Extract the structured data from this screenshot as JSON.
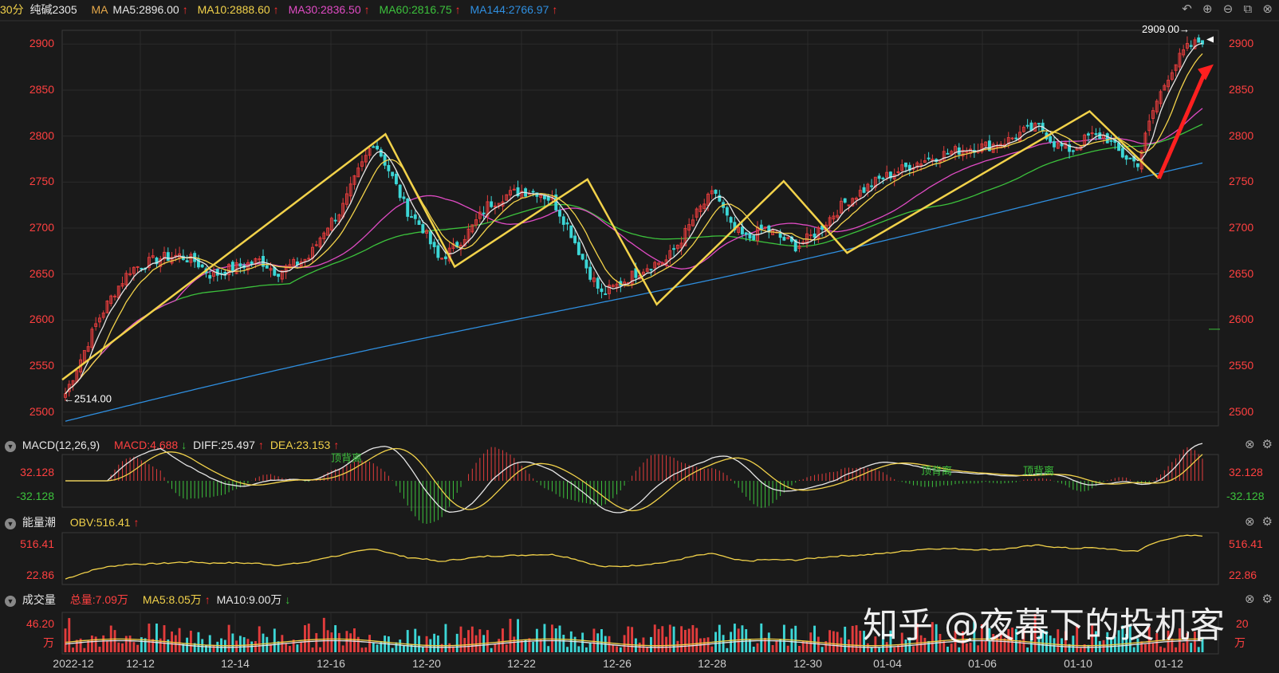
{
  "header": {
    "period": "30分",
    "symbol": "纯碱2305",
    "ma_label": "MA",
    "ma": [
      {
        "label": "MA5:2896.00",
        "color": "#e6e6e6"
      },
      {
        "label": "MA10:2888.60",
        "color": "#f2d24a"
      },
      {
        "label": "MA30:2836.50",
        "color": "#e04bc4"
      },
      {
        "label": "MA60:2816.75",
        "color": "#3cc23c"
      },
      {
        "label": "MA144:2766.97",
        "color": "#2f8fe0"
      }
    ],
    "up_arrow": "↑",
    "down_arrow": "↓"
  },
  "icons": [
    "undo-icon",
    "zoom-in-icon",
    "zoom-out-icon",
    "restore-icon",
    "close-icon"
  ],
  "price_chart": {
    "type": "candlestick",
    "ylim": [
      2485,
      2915
    ],
    "yticks": [
      2500,
      2550,
      2600,
      2650,
      2700,
      2750,
      2800,
      2850,
      2900
    ],
    "high_label": "2909.00→",
    "low_label": "←2514.00",
    "zigzag_points": [
      [
        0,
        2535
      ],
      [
        56,
        2802
      ],
      [
        68,
        2658
      ],
      [
        91,
        2753
      ],
      [
        103,
        2617
      ],
      [
        125,
        2751
      ],
      [
        136,
        2673
      ],
      [
        178,
        2827
      ],
      [
        190,
        2754
      ]
    ],
    "colors": {
      "up": "#e23c3c",
      "down": "#3cd6d6",
      "zigzag": "#f2d24a",
      "arrow": "#ff2020"
    }
  },
  "macd": {
    "title": "MACD(12,26,9)",
    "macd_label": "MACD:4.688",
    "diff_label": "DIFF:25.497",
    "dea_label": "DEA:23.153",
    "top": "32.128",
    "bottom": "-32.128",
    "annotations": [
      "顶背离",
      "顶背离",
      "顶背离"
    ]
  },
  "obv": {
    "title": "能量潮",
    "label": "OBV:516.41",
    "top": "516.41",
    "bottom": "22.86"
  },
  "volume": {
    "title": "成交量",
    "total_label": "总量:7.09万",
    "ma5_label": "MA5:8.05万",
    "ma10_label": "MA10:9.00万",
    "top": "46.20",
    "unit": "万",
    "right_top": "20"
  },
  "xaxis": [
    "2022-12",
    "12-12",
    "12-14",
    "12-16",
    "12-20",
    "12-22",
    "12-26",
    "12-28",
    "12-30",
    "01-04",
    "01-06",
    "01-10",
    "01-12"
  ],
  "watermark": "知乎 @夜幕下的投机客",
  "chart_data": {
    "type": "candlestick",
    "x_labels": [
      "2022-12",
      "12-12",
      "12-14",
      "12-16",
      "12-20",
      "12-22",
      "12-26",
      "12-28",
      "12-30",
      "01-04",
      "01-06",
      "01-10",
      "01-12"
    ],
    "ylim": [
      2485,
      2915
    ],
    "close_series": [
      2520,
      2560,
      2600,
      2630,
      2655,
      2662,
      2668,
      2670,
      2664,
      2648,
      2655,
      2660,
      2665,
      2652,
      2660,
      2668,
      2700,
      2720,
      2760,
      2795,
      2760,
      2720,
      2700,
      2665,
      2680,
      2700,
      2725,
      2735,
      2740,
      2740,
      2730,
      2700,
      2660,
      2628,
      2638,
      2650,
      2660,
      2665,
      2690,
      2720,
      2740,
      2700,
      2688,
      2700,
      2690,
      2680,
      2692,
      2710,
      2728,
      2740,
      2752,
      2760,
      2768,
      2775,
      2780,
      2785,
      2788,
      2790,
      2795,
      2805,
      2810,
      2790,
      2785,
      2800,
      2800,
      2780,
      2770,
      2830,
      2870,
      2895,
      2905
    ],
    "ma5_last": 2896.0,
    "ma10_last": 2888.6,
    "ma30_last": 2836.5,
    "ma60_last": 2816.75,
    "ma144_last": 2766.97,
    "macd": {
      "DIFF": 25.497,
      "DEA": 23.153,
      "MACD": 4.688,
      "range": [
        -32.128,
        32.128
      ]
    },
    "obv": {
      "last": 516.41,
      "range": [
        22.86,
        516.41
      ]
    },
    "volume": {
      "total_wan": 7.09,
      "ma5_wan": 8.05,
      "ma10_wan": 9.0,
      "max_wan": 46.2
    }
  }
}
